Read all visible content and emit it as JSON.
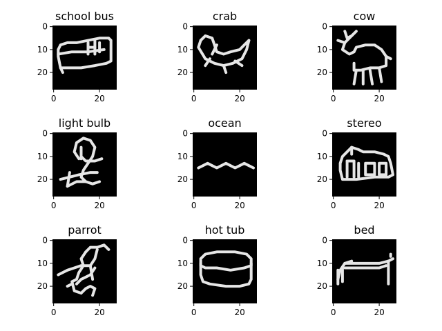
{
  "chart_data": [
    {
      "type": "heatmap",
      "title": "school bus",
      "xticks": [
        0,
        20
      ],
      "yticks": [
        0,
        10,
        20
      ],
      "xlim": [
        0,
        27
      ],
      "ylim": [
        27,
        0
      ],
      "strokes": [
        [
          [
            2,
            13
          ],
          [
            2,
            10
          ],
          [
            3,
            8
          ],
          [
            6,
            7
          ],
          [
            10,
            7
          ],
          [
            15,
            6
          ],
          [
            20,
            5
          ],
          [
            24,
            5
          ],
          [
            25,
            6
          ],
          [
            25,
            15
          ],
          [
            23,
            16
          ],
          [
            18,
            17
          ],
          [
            12,
            18
          ],
          [
            6,
            18
          ],
          [
            3,
            18
          ],
          [
            2,
            13
          ]
        ],
        [
          [
            2,
            12
          ],
          [
            8,
            11
          ],
          [
            15,
            11
          ],
          [
            22,
            10
          ]
        ],
        [
          [
            15,
            7
          ],
          [
            15,
            12
          ]
        ],
        [
          [
            18,
            6
          ],
          [
            18,
            12
          ]
        ],
        [
          [
            15,
            9
          ],
          [
            18,
            9
          ]
        ],
        [
          [
            20,
            7
          ],
          [
            20,
            11
          ]
        ],
        [
          [
            3,
            18
          ],
          [
            4,
            20
          ]
        ]
      ]
    },
    {
      "type": "heatmap",
      "title": "crab",
      "xticks": [
        0,
        20
      ],
      "yticks": [
        0,
        10,
        20
      ],
      "xlim": [
        0,
        27
      ],
      "ylim": [
        27,
        0
      ],
      "strokes": [
        [
          [
            3,
            6
          ],
          [
            5,
            4
          ],
          [
            8,
            5
          ],
          [
            9,
            8
          ],
          [
            10,
            11
          ],
          [
            13,
            12
          ],
          [
            16,
            11
          ],
          [
            20,
            10
          ],
          [
            22,
            8
          ],
          [
            24,
            6
          ]
        ],
        [
          [
            3,
            6
          ],
          [
            2,
            9
          ],
          [
            5,
            14
          ],
          [
            9,
            16
          ],
          [
            13,
            17
          ],
          [
            17,
            16
          ],
          [
            21,
            14
          ],
          [
            23,
            10
          ],
          [
            24,
            6
          ]
        ],
        [
          [
            13,
            17
          ],
          [
            14,
            20
          ]
        ],
        [
          [
            7,
            14
          ],
          [
            5,
            17
          ]
        ],
        [
          [
            18,
            15
          ],
          [
            21,
            17
          ]
        ],
        [
          [
            10,
            8
          ],
          [
            8,
            12
          ]
        ]
      ]
    },
    {
      "type": "heatmap",
      "title": "cow",
      "xticks": [
        0,
        20
      ],
      "yticks": [
        0,
        10,
        20
      ],
      "xlim": [
        0,
        27
      ],
      "ylim": [
        27,
        0
      ],
      "strokes": [
        [
          [
            5,
            2
          ],
          [
            6,
            5
          ],
          [
            8,
            4
          ],
          [
            10,
            2
          ]
        ],
        [
          [
            8,
            4
          ],
          [
            5,
            7
          ],
          [
            4,
            10
          ],
          [
            7,
            12
          ],
          [
            9,
            11
          ]
        ],
        [
          [
            9,
            11
          ],
          [
            10,
            9
          ],
          [
            14,
            8
          ],
          [
            18,
            8
          ],
          [
            21,
            10
          ],
          [
            23,
            13
          ],
          [
            23,
            17
          ],
          [
            20,
            18
          ],
          [
            16,
            18
          ],
          [
            12,
            19
          ],
          [
            9,
            19
          ],
          [
            9,
            16
          ]
        ],
        [
          [
            10,
            19
          ],
          [
            9,
            25
          ]
        ],
        [
          [
            13,
            19
          ],
          [
            13,
            25
          ]
        ],
        [
          [
            16,
            19
          ],
          [
            17,
            25
          ]
        ],
        [
          [
            20,
            18
          ],
          [
            21,
            24
          ]
        ],
        [
          [
            23,
            13
          ],
          [
            25,
            14
          ]
        ],
        [
          [
            5,
            7
          ],
          [
            2,
            6
          ]
        ]
      ]
    },
    {
      "type": "heatmap",
      "title": "light bulb",
      "xticks": [
        0,
        20
      ],
      "yticks": [
        0,
        10,
        20
      ],
      "xlim": [
        0,
        27
      ],
      "ylim": [
        27,
        0
      ],
      "strokes": [
        [
          [
            11,
            11
          ],
          [
            9,
            8
          ],
          [
            10,
            4
          ],
          [
            13,
            2
          ],
          [
            16,
            3
          ],
          [
            18,
            6
          ],
          [
            17,
            10
          ],
          [
            15,
            13
          ]
        ],
        [
          [
            12,
            10
          ],
          [
            14,
            12
          ],
          [
            18,
            12
          ],
          [
            21,
            11
          ]
        ],
        [
          [
            15,
            13
          ],
          [
            13,
            16
          ],
          [
            12,
            19
          ],
          [
            14,
            21
          ]
        ],
        [
          [
            3,
            20
          ],
          [
            7,
            19
          ],
          [
            11,
            18
          ],
          [
            16,
            17
          ],
          [
            19,
            17
          ]
        ],
        [
          [
            6,
            23
          ],
          [
            10,
            21
          ],
          [
            14,
            21
          ],
          [
            17,
            22
          ],
          [
            20,
            21
          ]
        ],
        [
          [
            12,
            6
          ],
          [
            12,
            11
          ]
        ],
        [
          [
            7,
            17
          ],
          [
            6,
            23
          ]
        ]
      ]
    },
    {
      "type": "heatmap",
      "title": "ocean",
      "xticks": [
        0,
        20
      ],
      "yticks": [
        0,
        10,
        20
      ],
      "xlim": [
        0,
        27
      ],
      "ylim": [
        27,
        0
      ],
      "strokes": [
        [
          [
            2,
            15
          ],
          [
            4,
            14
          ],
          [
            6,
            13
          ],
          [
            8,
            14
          ],
          [
            10,
            15
          ],
          [
            12,
            14
          ],
          [
            14,
            13
          ],
          [
            16,
            14
          ],
          [
            18,
            15
          ],
          [
            20,
            14
          ],
          [
            22,
            13
          ],
          [
            24,
            14
          ],
          [
            26,
            15
          ]
        ]
      ]
    },
    {
      "type": "heatmap",
      "title": "stereo",
      "xticks": [
        0,
        20
      ],
      "yticks": [
        0,
        10,
        20
      ],
      "xlim": [
        0,
        27
      ],
      "ylim": [
        27,
        0
      ],
      "strokes": [
        [
          [
            3,
            13
          ],
          [
            4,
            10
          ],
          [
            6,
            8
          ],
          [
            8,
            6
          ],
          [
            11,
            7
          ],
          [
            13,
            8
          ],
          [
            18,
            8
          ],
          [
            22,
            9
          ],
          [
            24,
            10
          ],
          [
            25,
            13
          ],
          [
            26,
            18
          ],
          [
            24,
            19
          ],
          [
            18,
            19
          ],
          [
            10,
            20
          ],
          [
            4,
            20
          ],
          [
            3,
            16
          ],
          [
            3,
            13
          ]
        ],
        [
          [
            8,
            6
          ],
          [
            8,
            9
          ]
        ],
        [
          [
            6,
            12
          ],
          [
            6,
            19
          ]
        ],
        [
          [
            6,
            12
          ],
          [
            9,
            12
          ],
          [
            9,
            19
          ]
        ],
        [
          [
            11,
            13
          ],
          [
            11,
            19
          ]
        ],
        [
          [
            14,
            13
          ],
          [
            18,
            13
          ],
          [
            18,
            18
          ],
          [
            14,
            18
          ],
          [
            14,
            13
          ]
        ],
        [
          [
            20,
            13
          ],
          [
            23,
            13
          ],
          [
            23,
            18
          ],
          [
            20,
            18
          ],
          [
            20,
            13
          ]
        ]
      ]
    },
    {
      "type": "heatmap",
      "title": "parrot",
      "xticks": [
        0,
        20
      ],
      "yticks": [
        0,
        10,
        20
      ],
      "xlim": [
        0,
        27
      ],
      "ylim": [
        27,
        0
      ],
      "strokes": [
        [
          [
            14,
            5
          ],
          [
            16,
            3
          ],
          [
            19,
            3
          ],
          [
            22,
            2
          ],
          [
            24,
            4
          ]
        ],
        [
          [
            14,
            5
          ],
          [
            12,
            8
          ],
          [
            13,
            11
          ],
          [
            16,
            11
          ],
          [
            18,
            8
          ],
          [
            19,
            4
          ]
        ],
        [
          [
            2,
            15
          ],
          [
            6,
            13
          ],
          [
            9,
            12
          ],
          [
            12,
            11
          ]
        ],
        [
          [
            13,
            11
          ],
          [
            11,
            14
          ],
          [
            10,
            17
          ],
          [
            8,
            18
          ],
          [
            9,
            22
          ],
          [
            12,
            23
          ]
        ],
        [
          [
            12,
            23
          ],
          [
            14,
            21
          ],
          [
            16,
            20
          ],
          [
            18,
            21
          ],
          [
            17,
            24
          ]
        ],
        [
          [
            10,
            19
          ],
          [
            12,
            17
          ],
          [
            14,
            16
          ],
          [
            16,
            15
          ],
          [
            18,
            12
          ]
        ],
        [
          [
            6,
            20
          ],
          [
            8,
            19
          ]
        ],
        [
          [
            16,
            11
          ],
          [
            17,
            17
          ]
        ]
      ]
    },
    {
      "type": "heatmap",
      "title": "hot tub",
      "xticks": [
        0,
        20
      ],
      "yticks": [
        0,
        10,
        20
      ],
      "xlim": [
        0,
        27
      ],
      "ylim": [
        27,
        0
      ],
      "strokes": [
        [
          [
            3,
            8
          ],
          [
            5,
            6
          ],
          [
            10,
            5
          ],
          [
            18,
            5
          ],
          [
            23,
            6
          ],
          [
            25,
            8
          ],
          [
            25,
            11
          ],
          [
            22,
            12
          ],
          [
            16,
            13
          ],
          [
            10,
            12
          ],
          [
            5,
            12
          ],
          [
            3,
            11
          ],
          [
            3,
            8
          ]
        ],
        [
          [
            3,
            10
          ],
          [
            3,
            15
          ],
          [
            4,
            18
          ],
          [
            7,
            19
          ],
          [
            14,
            20
          ],
          [
            20,
            20
          ],
          [
            24,
            19
          ],
          [
            25,
            17
          ],
          [
            25,
            10
          ]
        ]
      ]
    },
    {
      "type": "heatmap",
      "title": "bed",
      "xticks": [
        0,
        20
      ],
      "yticks": [
        0,
        10,
        20
      ],
      "xlim": [
        0,
        27
      ],
      "ylim": [
        27,
        0
      ],
      "strokes": [
        [
          [
            2,
            17
          ],
          [
            3,
            13
          ],
          [
            5,
            10
          ],
          [
            8,
            9
          ]
        ],
        [
          [
            5,
            10
          ],
          [
            10,
            10
          ],
          [
            15,
            10
          ],
          [
            20,
            10
          ],
          [
            24,
            9
          ],
          [
            26,
            8
          ]
        ],
        [
          [
            2,
            13
          ],
          [
            2,
            19
          ]
        ],
        [
          [
            24,
            9
          ],
          [
            24,
            19
          ]
        ],
        [
          [
            4,
            12
          ],
          [
            4,
            18
          ]
        ],
        [
          [
            25,
            7
          ],
          [
            25,
            6
          ]
        ],
        [
          [
            5,
            12
          ],
          [
            20,
            12
          ],
          [
            23,
            11
          ]
        ]
      ]
    }
  ]
}
